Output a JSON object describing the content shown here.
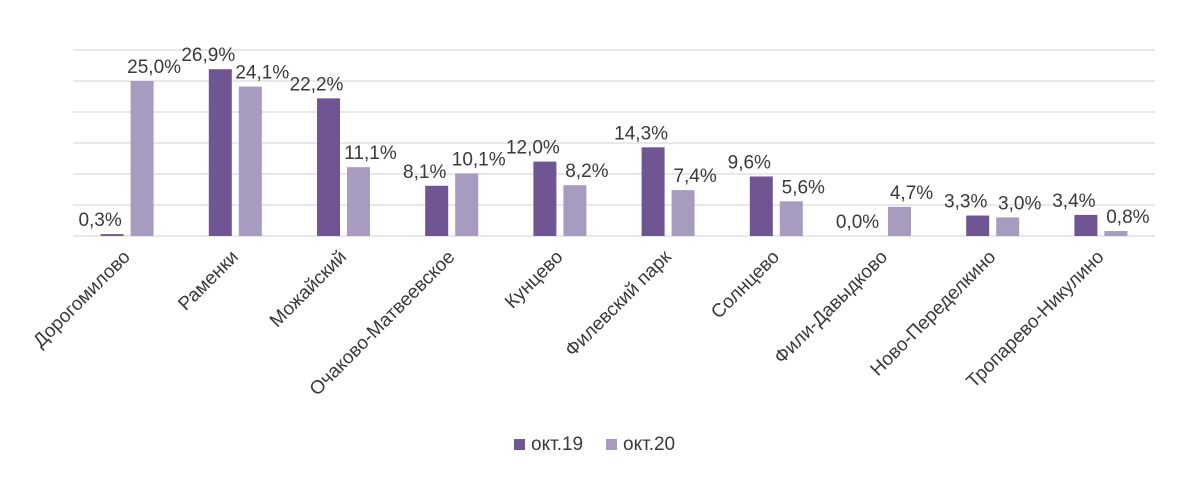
{
  "chart_data": {
    "type": "bar",
    "title": "",
    "xlabel": "",
    "ylabel": "",
    "ylim": [
      0,
      30
    ],
    "grid": true,
    "legend_position": "bottom",
    "categories": [
      "Дорогомилово",
      "Раменки",
      "Можайский",
      "Очаково-Матвеевское",
      "Кунцево",
      "Филевский парк",
      "Солнцево",
      "Фили-Давыдково",
      "Ново-Переделкино",
      "Тропарево-Никулино"
    ],
    "series": [
      {
        "name": "окт.19",
        "color": "#6f5592",
        "values": [
          0.3,
          26.9,
          22.2,
          8.1,
          12.0,
          14.3,
          9.6,
          0.0,
          3.3,
          3.4
        ],
        "labels": [
          "0,3%",
          "26,9%",
          "22,2%",
          "8,1%",
          "12,0%",
          "14,3%",
          "9,6%",
          "0,0%",
          "3,3%",
          "3,4%"
        ]
      },
      {
        "name": "окт.20",
        "color": "#a79bbf",
        "values": [
          25.0,
          24.1,
          11.1,
          10.1,
          8.2,
          7.4,
          5.6,
          4.7,
          3.0,
          0.8
        ],
        "labels": [
          "25,0%",
          "24,1%",
          "11,1%",
          "10,1%",
          "8,2%",
          "7,4%",
          "5,6%",
          "4,7%",
          "3,0%",
          "0,8%"
        ]
      }
    ]
  }
}
